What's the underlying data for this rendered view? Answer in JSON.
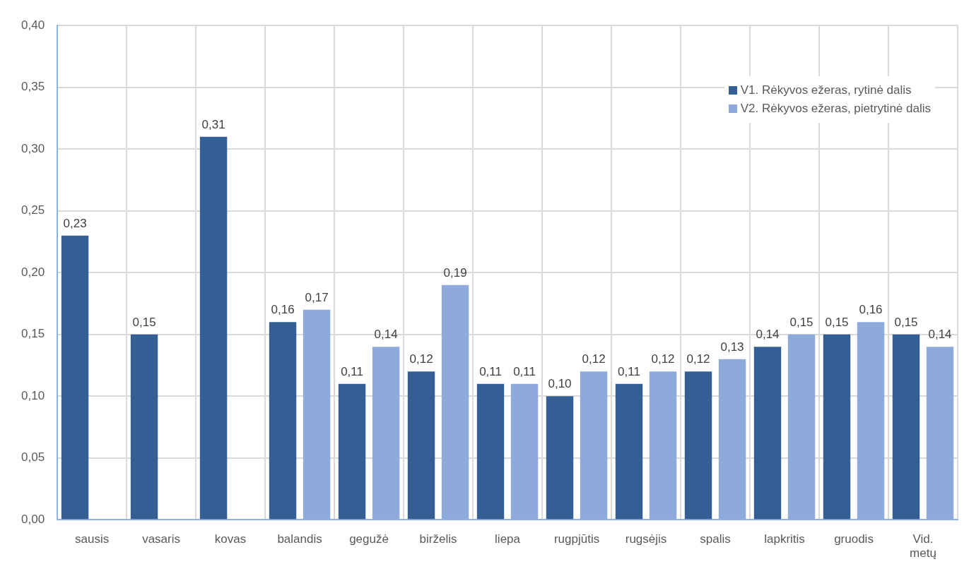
{
  "chart_data": {
    "type": "bar",
    "categories": [
      "sausis",
      "vasaris",
      "kovas",
      "balandis",
      "gegužė",
      "birželis",
      "liepa",
      "rugpjūtis",
      "rugsėjis",
      "spalis",
      "lapkritis",
      "gruodis",
      "Vid. metų"
    ],
    "series": [
      {
        "name": "V1. Rėkyvos ežeras, rytinė dalis",
        "color": "#345f94",
        "values": [
          0.23,
          0.15,
          0.31,
          0.16,
          0.11,
          0.12,
          0.11,
          0.1,
          0.11,
          0.12,
          0.14,
          0.15,
          0.15
        ],
        "value_labels": [
          "0,23",
          "0,15",
          "0,31",
          "0,16",
          "0,11",
          "0,12",
          "0,11",
          "0,10",
          "0,11",
          "0,12",
          "0,14",
          "0,15",
          "0,15"
        ]
      },
      {
        "name": "V2. Rėkyvos ežeras, pietrytinė dalis",
        "color": "#8eaadb",
        "values": [
          null,
          null,
          null,
          0.17,
          0.14,
          0.19,
          0.11,
          0.12,
          0.12,
          0.13,
          0.15,
          0.16,
          0.14
        ],
        "value_labels": [
          null,
          null,
          null,
          "0,17",
          "0,14",
          "0,19",
          "0,11",
          "0,12",
          "0,12",
          "0,13",
          "0,15",
          "0,16",
          "0,14"
        ]
      }
    ],
    "ylim": [
      0,
      0.4
    ],
    "yticks": [
      {
        "value": 0,
        "label": "0,00"
      },
      {
        "value": 0.05,
        "label": "0,05"
      },
      {
        "value": 0.1,
        "label": "0,10"
      },
      {
        "value": 0.15,
        "label": "0,15"
      },
      {
        "value": 0.2,
        "label": "0,20"
      },
      {
        "value": 0.25,
        "label": "0,25"
      },
      {
        "value": 0.3,
        "label": "0,30"
      },
      {
        "value": 0.35,
        "label": "0,35"
      },
      {
        "value": 0.4,
        "label": "0,40"
      }
    ],
    "grid": true,
    "legend": "top right"
  }
}
